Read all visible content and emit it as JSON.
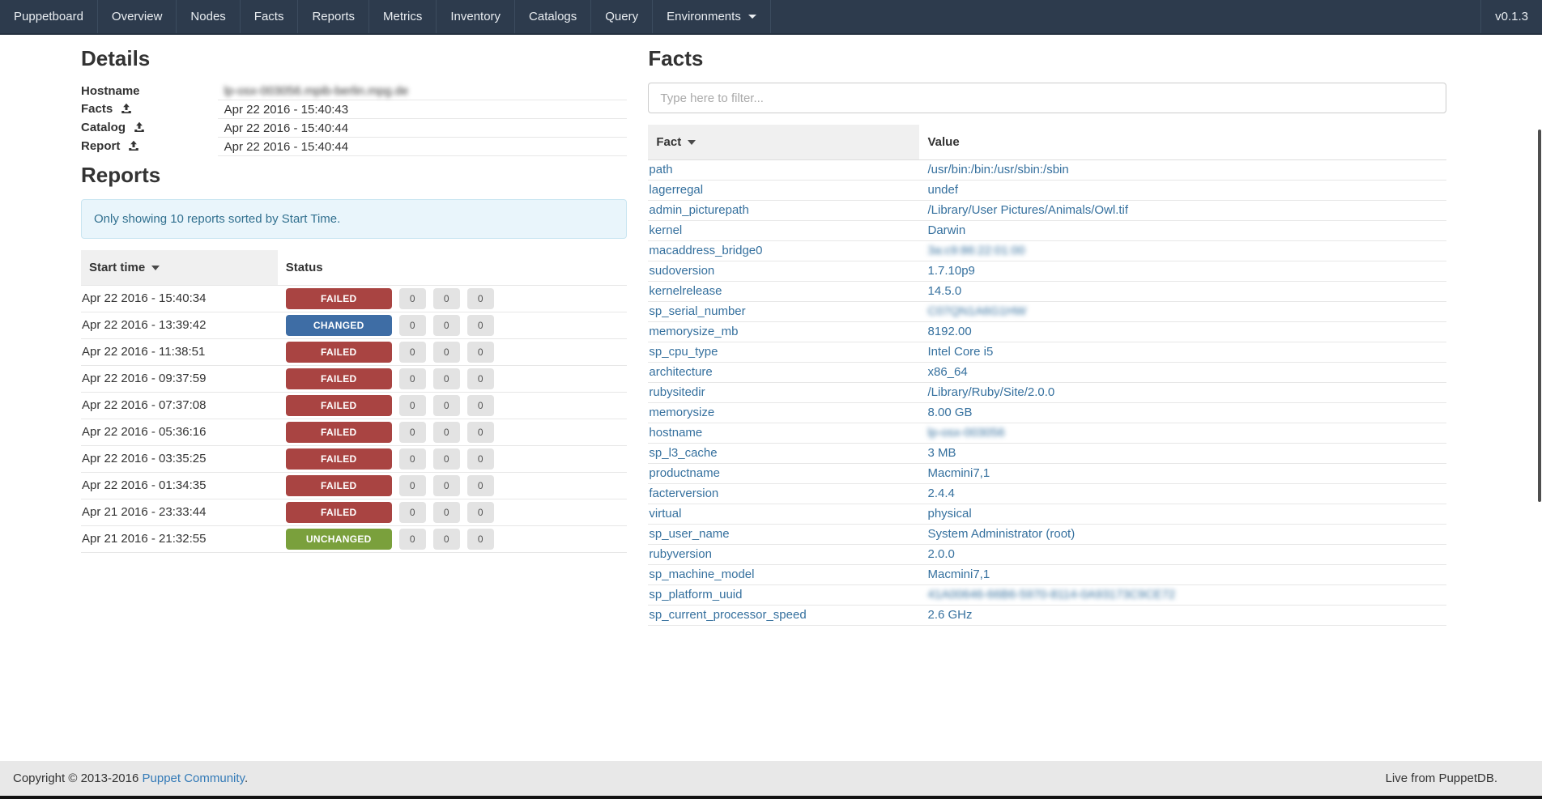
{
  "navbar": {
    "brand": "Puppetboard",
    "items": [
      "Overview",
      "Nodes",
      "Facts",
      "Reports",
      "Metrics",
      "Inventory",
      "Catalogs",
      "Query"
    ],
    "environments_label": "Environments",
    "version": "v0.1.3"
  },
  "details": {
    "title": "Details",
    "rows": [
      {
        "label": "Hostname",
        "value": "lp-osx-003056.mpib-berlin.mpg.de",
        "blurred": true
      },
      {
        "label": "Facts",
        "value": "Apr 22 2016 - 15:40:43",
        "icon": "upload-icon"
      },
      {
        "label": "Catalog",
        "value": "Apr 22 2016 - 15:40:44",
        "icon": "upload-icon"
      },
      {
        "label": "Report",
        "value": "Apr 22 2016 - 15:40:44",
        "icon": "upload-icon"
      }
    ]
  },
  "reports": {
    "title": "Reports",
    "alert": "Only showing 10 reports sorted by Start Time.",
    "columns": {
      "start_time": "Start time",
      "status": "Status"
    },
    "status_colors": {
      "FAILED": "#a94442",
      "CHANGED": "#3e6da5",
      "UNCHANGED": "#7aa03c"
    },
    "rows": [
      {
        "time": "Apr 22 2016 - 15:40:34",
        "status": "FAILED",
        "counts": [
          "0",
          "0",
          "0"
        ]
      },
      {
        "time": "Apr 22 2016 - 13:39:42",
        "status": "CHANGED",
        "counts": [
          "0",
          "0",
          "0"
        ]
      },
      {
        "time": "Apr 22 2016 - 11:38:51",
        "status": "FAILED",
        "counts": [
          "0",
          "0",
          "0"
        ]
      },
      {
        "time": "Apr 22 2016 - 09:37:59",
        "status": "FAILED",
        "counts": [
          "0",
          "0",
          "0"
        ]
      },
      {
        "time": "Apr 22 2016 - 07:37:08",
        "status": "FAILED",
        "counts": [
          "0",
          "0",
          "0"
        ]
      },
      {
        "time": "Apr 22 2016 - 05:36:16",
        "status": "FAILED",
        "counts": [
          "0",
          "0",
          "0"
        ]
      },
      {
        "time": "Apr 22 2016 - 03:35:25",
        "status": "FAILED",
        "counts": [
          "0",
          "0",
          "0"
        ]
      },
      {
        "time": "Apr 22 2016 - 01:34:35",
        "status": "FAILED",
        "counts": [
          "0",
          "0",
          "0"
        ]
      },
      {
        "time": "Apr 21 2016 - 23:33:44",
        "status": "FAILED",
        "counts": [
          "0",
          "0",
          "0"
        ]
      },
      {
        "time": "Apr 21 2016 - 21:32:55",
        "status": "UNCHANGED",
        "counts": [
          "0",
          "0",
          "0"
        ]
      }
    ]
  },
  "facts": {
    "title": "Facts",
    "filter_placeholder": "Type here to filter...",
    "columns": {
      "fact": "Fact",
      "value": "Value"
    },
    "rows": [
      {
        "name": "path",
        "value": "/usr/bin:/bin:/usr/sbin:/sbin"
      },
      {
        "name": "lagerregal",
        "value": "undef"
      },
      {
        "name": "admin_picturepath",
        "value": "/Library/User Pictures/Animals/Owl.tif"
      },
      {
        "name": "kernel",
        "value": "Darwin"
      },
      {
        "name": "macaddress_bridge0",
        "value": "3a:c9:86:22:01:00",
        "blurred": true
      },
      {
        "name": "sudoversion",
        "value": "1.7.10p9"
      },
      {
        "name": "kernelrelease",
        "value": "14.5.0"
      },
      {
        "name": "sp_serial_number",
        "value": "C07QN1A6G1HW",
        "blurred": true
      },
      {
        "name": "memorysize_mb",
        "value": "8192.00"
      },
      {
        "name": "sp_cpu_type",
        "value": "Intel Core i5"
      },
      {
        "name": "architecture",
        "value": "x86_64"
      },
      {
        "name": "rubysitedir",
        "value": "/Library/Ruby/Site/2.0.0"
      },
      {
        "name": "memorysize",
        "value": "8.00 GB"
      },
      {
        "name": "hostname",
        "value": "lp-osx-003056",
        "blurred": true
      },
      {
        "name": "sp_l3_cache",
        "value": "3 MB"
      },
      {
        "name": "productname",
        "value": "Macmini7,1"
      },
      {
        "name": "facterversion",
        "value": "2.4.4"
      },
      {
        "name": "virtual",
        "value": "physical"
      },
      {
        "name": "sp_user_name",
        "value": "System Administrator (root)"
      },
      {
        "name": "rubyversion",
        "value": "2.0.0"
      },
      {
        "name": "sp_machine_model",
        "value": "Macmini7,1"
      },
      {
        "name": "sp_platform_uuid",
        "value": "41A00646-66B6-5970-8114-0A93173C9CE72",
        "blurred": true
      },
      {
        "name": "sp_current_processor_speed",
        "value": "2.6 GHz"
      }
    ]
  },
  "footer": {
    "copyright_prefix": "Copyright © 2013-2016 ",
    "copyright_link": "Puppet Community",
    "copyright_suffix": ".",
    "live_text": "Live from PuppetDB."
  }
}
